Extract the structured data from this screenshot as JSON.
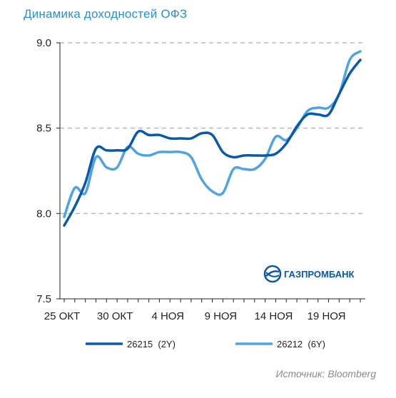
{
  "title": "Динамика доходностей ОФЗ",
  "source": "Источник: Bloomberg",
  "logo_text": "ГАЗПРОМБАНК",
  "colors": {
    "series1": "#0a58a8",
    "series2": "#4fa3e0",
    "title": "#2a8fd0",
    "logo": "#0a58a8",
    "grid": "#b8b8b8"
  },
  "chart_data": {
    "type": "line",
    "title": "Динамика доходностей ОФЗ",
    "xlabel": "",
    "ylabel": "",
    "ylim": [
      7.5,
      9.0
    ],
    "yticks": [
      7.5,
      8.0,
      8.5,
      9.0
    ],
    "ytick_labels": [
      "7.5",
      "8.0",
      "8.5",
      "9.0"
    ],
    "xtick_labels": [
      "25 ОКТ",
      "30 ОКТ",
      "4 НОЯ",
      "9 НОЯ",
      "14 НОЯ",
      "19 НОЯ"
    ],
    "grid": "horizontal dashed",
    "legend_position": "bottom",
    "x": [
      "25 ОКТ",
      "26 ОКТ",
      "27 ОКТ",
      "28 ОКТ",
      "29 ОКТ",
      "30 ОКТ",
      "31 ОКТ",
      "1 НОЯ",
      "2 НОЯ",
      "3 НОЯ",
      "4 НОЯ",
      "5 НОЯ",
      "6 НОЯ",
      "7 НОЯ",
      "8 НОЯ",
      "9 НОЯ",
      "10 НОЯ",
      "11 НОЯ",
      "12 НОЯ",
      "13 НОЯ",
      "14 НОЯ",
      "15 НОЯ",
      "16 НОЯ",
      "17 НОЯ",
      "18 НОЯ",
      "19 НОЯ",
      "20 НОЯ",
      "21 НОЯ",
      "22 НОЯ"
    ],
    "series": [
      {
        "name": "26215  (2Y)",
        "values": [
          7.93,
          8.04,
          8.18,
          8.38,
          8.37,
          8.37,
          8.38,
          8.48,
          8.46,
          8.46,
          8.44,
          8.44,
          8.44,
          8.47,
          8.46,
          8.36,
          8.33,
          8.34,
          8.34,
          8.34,
          8.35,
          8.41,
          8.51,
          8.58,
          8.58,
          8.58,
          8.7,
          8.82,
          8.9
        ]
      },
      {
        "name": "26212  (6Y)",
        "values": [
          7.98,
          8.15,
          8.12,
          8.33,
          8.27,
          8.27,
          8.39,
          8.35,
          8.34,
          8.36,
          8.36,
          8.36,
          8.33,
          8.2,
          8.13,
          8.12,
          8.26,
          8.26,
          8.26,
          8.32,
          8.45,
          8.43,
          8.5,
          8.6,
          8.62,
          8.62,
          8.7,
          8.9,
          8.95
        ]
      }
    ]
  }
}
